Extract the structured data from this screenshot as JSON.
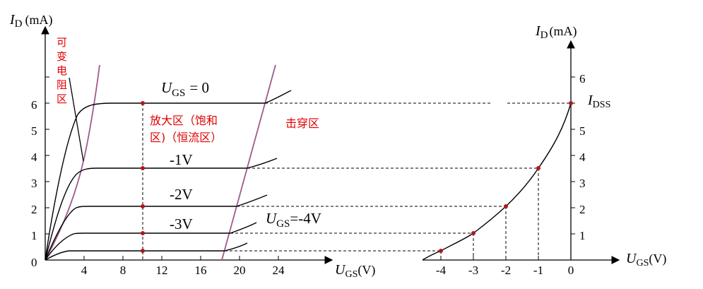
{
  "left_chart": {
    "y_axis_symbol": "I",
    "y_axis_sub": "D",
    "y_axis_unit": "(mA)",
    "x_axis_symbol": "U",
    "x_axis_sub": "GS",
    "x_axis_unit": "(V)",
    "x_ticks": [
      "4",
      "8",
      "12",
      "16",
      "20",
      "24"
    ],
    "y_ticks": [
      "0",
      "1",
      "2",
      "3",
      "4",
      "5",
      "6"
    ],
    "curve_labels": {
      "ugs0_prefix": "U",
      "ugs0_sub": "GS",
      "ugs0_suffix": "= 0",
      "m1": "-1V",
      "m2": "-2V",
      "m3": "-3V",
      "m4_prefix": "U",
      "m4_sub": "GS",
      "m4_suffix": "=-4V"
    },
    "regions": {
      "variable_resistance": [
        "可",
        "变",
        "电",
        "阻",
        "区"
      ],
      "amplification_line1": "放大区（饱和",
      "amplification_line2": "区)（恒流区）",
      "breakdown": "击穿区"
    }
  },
  "right_chart": {
    "y_axis_symbol": "I",
    "y_axis_sub": "D",
    "y_axis_unit": "(mA)",
    "x_axis_symbol": "U",
    "x_axis_sub": "GS",
    "x_axis_unit": "(V)",
    "x_ticks": [
      "-4",
      "-3",
      "-2",
      "-1",
      "0"
    ],
    "y_ticks": [
      "1",
      "2",
      "3",
      "4",
      "5",
      "6"
    ],
    "idss_symbol": "I",
    "idss_sub": "DSS"
  },
  "chart_data": {
    "type": "line",
    "output_characteristics": [
      {
        "ugs": 0,
        "saturation_id": 5.3
      },
      {
        "ugs": -1,
        "saturation_id": 3.05
      },
      {
        "ugs": -2,
        "saturation_id": 1.8
      },
      {
        "ugs": -3,
        "saturation_id": 0.85
      },
      {
        "ugs": -4,
        "saturation_id": 0.3
      }
    ],
    "transfer_characteristic": {
      "x": [
        -4,
        -3,
        -2,
        -1,
        0
      ],
      "y": [
        0.3,
        0.85,
        1.8,
        3.05,
        5.3
      ]
    },
    "colors": {
      "region_text": "#e00000",
      "boundary": "#a05a8c",
      "point": "#b01818",
      "curve": "#000000"
    }
  }
}
